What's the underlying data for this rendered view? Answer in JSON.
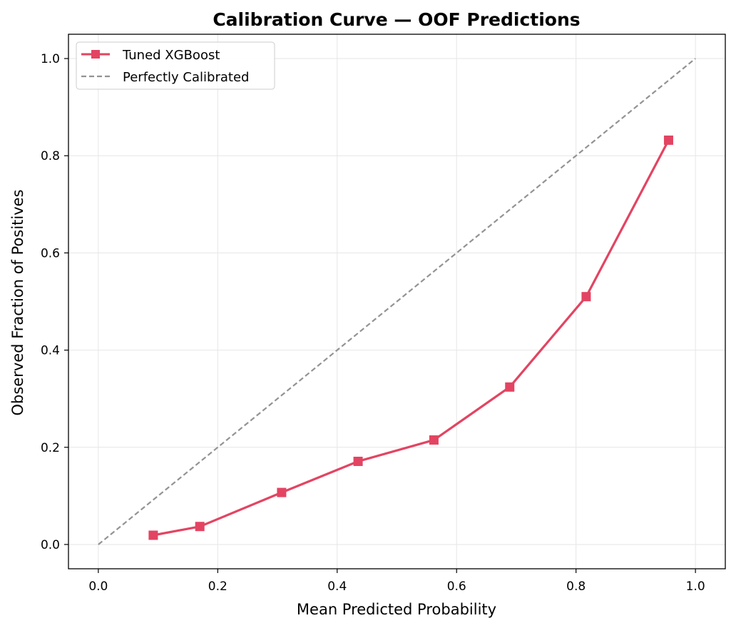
{
  "chart_data": {
    "type": "line",
    "title": "Calibration Curve — OOF Predictions",
    "xlabel": "Mean Predicted Probability",
    "ylabel": "Observed Fraction of Positives",
    "xlim": [
      -0.05,
      1.05
    ],
    "ylim": [
      -0.05,
      1.05
    ],
    "xticks": [
      "0.0",
      "0.2",
      "0.4",
      "0.6",
      "0.8",
      "1.0"
    ],
    "yticks": [
      "0.0",
      "0.2",
      "0.4",
      "0.6",
      "0.8",
      "1.0"
    ],
    "grid": true,
    "legend_position": "top-left",
    "series": [
      {
        "name": "Tuned XGBoost",
        "color": "#e34462",
        "marker": "square",
        "line_style": "solid",
        "x": [
          0.092,
          0.17,
          0.307,
          0.435,
          0.562,
          0.689,
          0.817,
          0.955
        ],
        "y": [
          0.019,
          0.037,
          0.107,
          0.171,
          0.215,
          0.324,
          0.51,
          0.832
        ]
      },
      {
        "name": "Perfectly Calibrated",
        "color": "#939393",
        "marker": "none",
        "line_style": "dashed",
        "x": [
          0.0,
          1.0
        ],
        "y": [
          0.0,
          1.0
        ]
      }
    ]
  }
}
